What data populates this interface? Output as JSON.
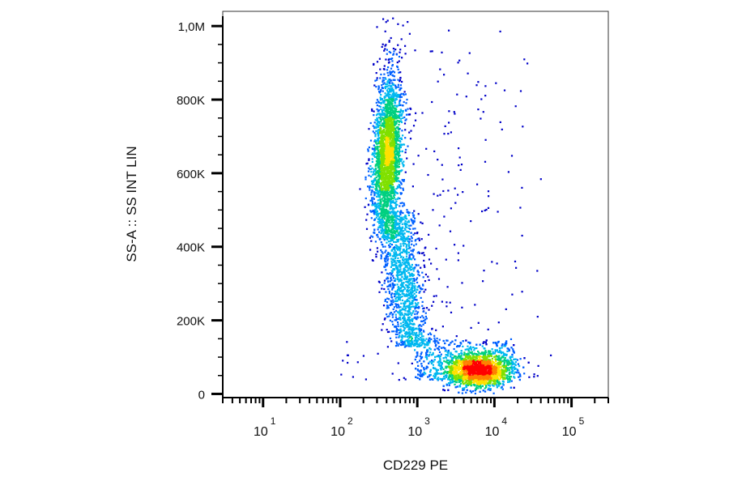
{
  "chart_data": {
    "type": "scatter",
    "style": "density dot plot (flow cytometry)",
    "xlabel": "CD229 PE",
    "ylabel": "SS-A :: SS INT LIN",
    "x_scale": "log",
    "y_scale": "linear",
    "xlim": [
      3,
      300000
    ],
    "ylim": [
      -10000,
      1040000
    ],
    "x_ticks": [
      {
        "value": 10,
        "base": "10",
        "exp": "1"
      },
      {
        "value": 100,
        "base": "10",
        "exp": "2"
      },
      {
        "value": 1000,
        "base": "10",
        "exp": "3"
      },
      {
        "value": 10000,
        "base": "10",
        "exp": "4"
      },
      {
        "value": 100000,
        "base": "10",
        "exp": "5"
      }
    ],
    "y_ticks": [
      {
        "value": 0,
        "label": "0"
      },
      {
        "value": 200000,
        "label": "200K"
      },
      {
        "value": 400000,
        "label": "400K"
      },
      {
        "value": 600000,
        "label": "600K"
      },
      {
        "value": 800000,
        "label": "800K"
      },
      {
        "value": 1000000,
        "label": "1,0M"
      }
    ],
    "grid": false,
    "legend": "none",
    "density_colors": [
      "#0000c8",
      "#0060ff",
      "#00b8f0",
      "#00d080",
      "#80e000",
      "#ffe000",
      "#ff8000",
      "#ff0000"
    ],
    "populations": [
      {
        "name": "upper-band",
        "x_center": 400,
        "y_center": 650000,
        "x_log_spread": 0.09,
        "y_range": [
          420000,
          1030000
        ],
        "count": 2600
      },
      {
        "name": "lower-band",
        "x_center": 500,
        "y_center": 320000,
        "x_log_spread": 0.13,
        "y_range": [
          130000,
          500000
        ],
        "count": 1400
      },
      {
        "name": "low-ss-cluster",
        "x_center": 6000,
        "y_center": 65000,
        "x_log_spread": 0.22,
        "y_range": [
          20000,
          140000
        ],
        "count": 3200
      },
      {
        "name": "sparse-scatter",
        "x_range": [
          100,
          40000
        ],
        "y_range": [
          40000,
          1000000
        ],
        "count": 220
      }
    ]
  }
}
